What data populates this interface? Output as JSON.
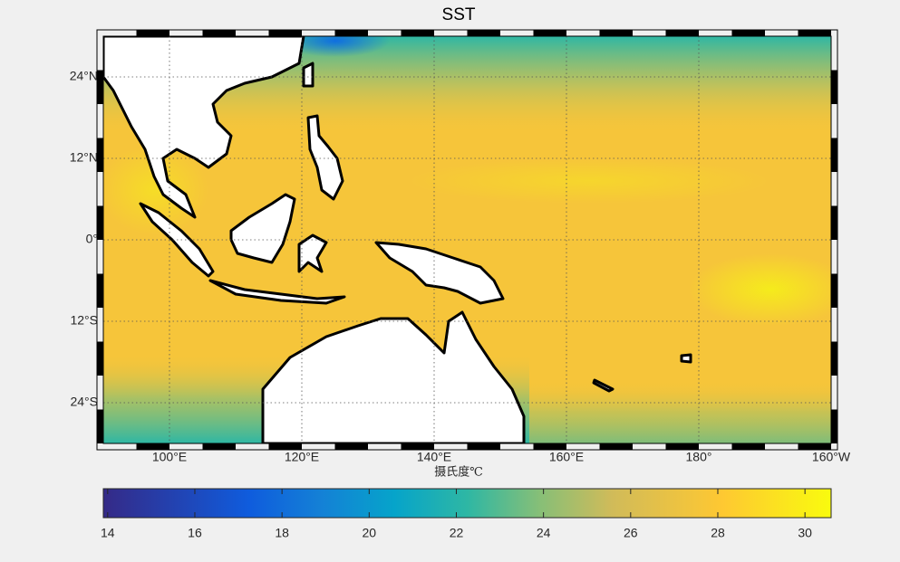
{
  "title": "SST",
  "map": {
    "lon_range": [
      90,
      200
    ],
    "lat_range": [
      -30,
      30
    ],
    "lon_ticks": [
      {
        "value": 100,
        "label": "100°E"
      },
      {
        "value": 120,
        "label": "120°E"
      },
      {
        "value": 140,
        "label": "140°E"
      },
      {
        "value": 160,
        "label": "160°E"
      },
      {
        "value": 180,
        "label": "180°"
      },
      {
        "value": 200,
        "label": "160°W"
      }
    ],
    "lat_ticks": [
      {
        "value": 24,
        "label": "24°N"
      },
      {
        "value": 12,
        "label": "12°N"
      },
      {
        "value": 0,
        "label": "0°"
      },
      {
        "value": -12,
        "label": "12°S"
      },
      {
        "value": -24,
        "label": "24°S"
      }
    ]
  },
  "colorbar": {
    "label": "摄氏度℃",
    "range": [
      13.9,
      30.6
    ],
    "ticks": [
      14,
      16,
      18,
      20,
      22,
      24,
      26,
      28,
      30
    ]
  }
}
